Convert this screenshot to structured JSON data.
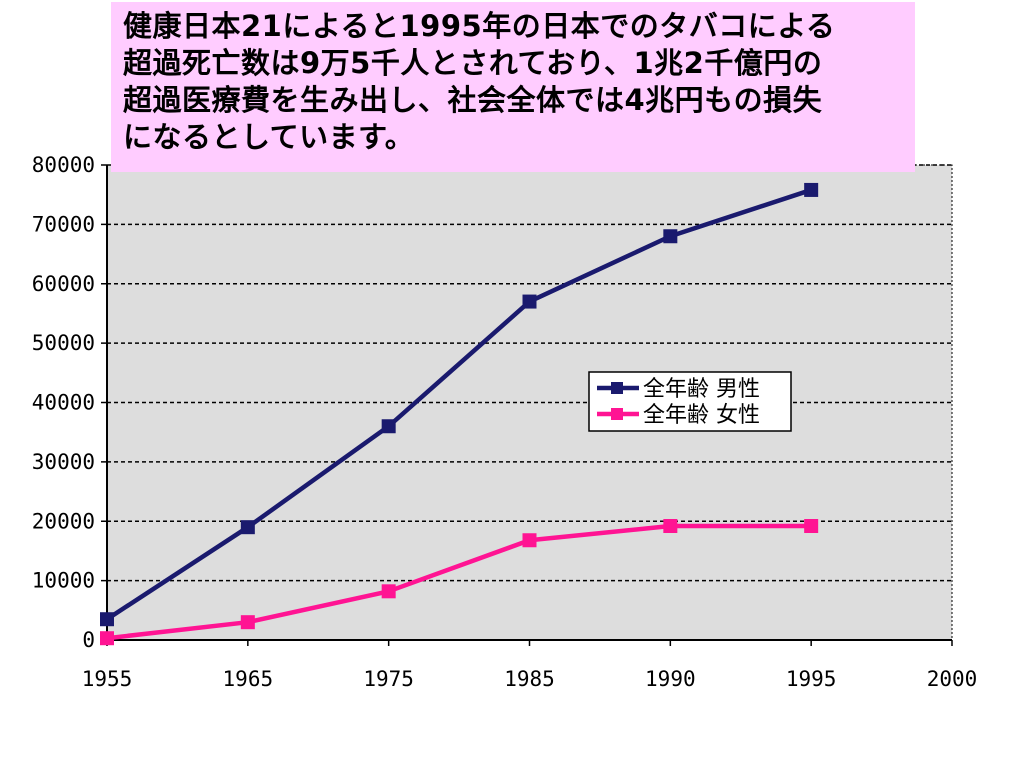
{
  "annotation": {
    "lines": [
      "健康日本21によると1995年の日本でのタバコによる",
      "超過死亡数は9万5千人とされており、1兆2千億円の",
      "超過医療費を生み出し、社会全体では4兆円もの損失",
      "になるとしています。"
    ]
  },
  "chart_data": {
    "type": "line",
    "x_categories": [
      "1955",
      "1965",
      "1975",
      "1985",
      "1990",
      "1995",
      "2000"
    ],
    "ylim": [
      0,
      80000
    ],
    "yticks": [
      "0",
      "10000",
      "20000",
      "30000",
      "40000",
      "50000",
      "60000",
      "70000",
      "80000"
    ],
    "grid": true,
    "legend_position": "right-center",
    "colors": {
      "plot_bg": "#dddddd",
      "male": "#1a1a6e",
      "female": "#ff1493"
    },
    "series": [
      {
        "name": "全年齢 男性",
        "color": "#1a1a6e",
        "values": [
          3500,
          19000,
          36000,
          57000,
          68000,
          75800
        ]
      },
      {
        "name": "全年齢 女性",
        "color": "#ff1493",
        "values": [
          300,
          3000,
          8200,
          16800,
          19200,
          19200
        ]
      }
    ]
  }
}
